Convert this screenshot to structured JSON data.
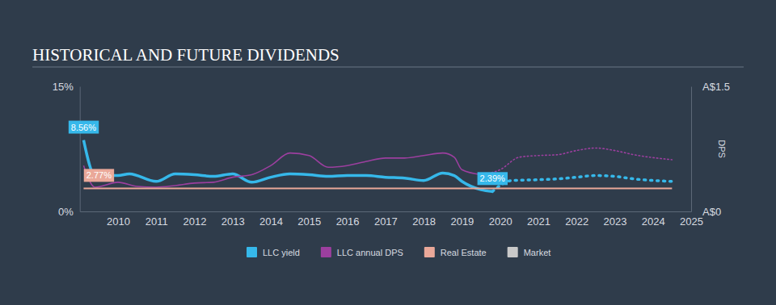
{
  "chart_data": {
    "type": "line",
    "title": "HISTORICAL AND FUTURE DIVIDENDS",
    "y2_label": "DPS",
    "xlim": [
      2009,
      2025
    ],
    "xticks": [
      2010,
      2011,
      2012,
      2013,
      2014,
      2015,
      2016,
      2017,
      2018,
      2019,
      2020,
      2021,
      2022,
      2023,
      2024,
      2025
    ],
    "ylim": [
      0,
      15
    ],
    "yticks": [
      {
        "value": 0,
        "label": "0%"
      },
      {
        "value": 15,
        "label": "15%"
      }
    ],
    "y2lim": [
      0,
      1.5
    ],
    "y2ticks": [
      {
        "value": 0,
        "label": "A$0"
      },
      {
        "value": 1.5,
        "label": "A$1.5"
      }
    ],
    "grid": false,
    "legend": "bottom",
    "series": [
      {
        "name": "LLC yield",
        "color": "#36b8ea",
        "line_style": "solid",
        "x": [
          2009.1,
          2009.4,
          2010,
          2010.3,
          2011,
          2011.5,
          2012,
          2012.5,
          2013,
          2013.5,
          2014,
          2014.5,
          2015,
          2015.5,
          2016,
          2016.5,
          2017,
          2017.5,
          2018,
          2018.5,
          2018.8,
          2019,
          2019.5,
          2019.8
        ],
        "values": [
          8.56,
          4.3,
          4.3,
          4.5,
          3.6,
          4.5,
          4.4,
          4.2,
          4.5,
          3.5,
          4.1,
          4.5,
          4.4,
          4.2,
          4.3,
          4.3,
          4.1,
          4.0,
          3.7,
          4.6,
          4.3,
          3.6,
          2.6,
          2.39
        ]
      },
      {
        "name": "LLC yield",
        "color": "#36b8ea",
        "line_style": "dotted",
        "x": [
          2019.8,
          2020.3,
          2021,
          2021.5,
          2022,
          2022.5,
          2023,
          2023.5,
          2024.5
        ],
        "values": [
          2.39,
          3.7,
          3.8,
          3.9,
          4.1,
          4.3,
          4.2,
          3.9,
          3.6
        ]
      },
      {
        "name": "LLC annual DPS",
        "color": "#9c3f9f",
        "line_style": "solid",
        "axis": "y2",
        "x": [
          2009.1,
          2009.4,
          2010,
          2010.5,
          2011,
          2011.5,
          2012,
          2012.5,
          2013,
          2013.5,
          2014,
          2014.5,
          2015,
          2015.5,
          2016,
          2016.5,
          2017,
          2017.5,
          2018,
          2018.5,
          2018.8,
          2019,
          2019.5
        ],
        "values": [
          0.55,
          0.29,
          0.35,
          0.3,
          0.29,
          0.31,
          0.34,
          0.35,
          0.41,
          0.44,
          0.55,
          0.7,
          0.67,
          0.53,
          0.55,
          0.6,
          0.64,
          0.64,
          0.67,
          0.7,
          0.65,
          0.5,
          0.44
        ]
      },
      {
        "name": "LLC annual DPS",
        "color": "#9c3f9f",
        "line_style": "dotted",
        "axis": "y2",
        "x": [
          2019.5,
          2020,
          2020.5,
          2021,
          2021.5,
          2022,
          2022.5,
          2023,
          2023.5,
          2024.5
        ],
        "values": [
          0.44,
          0.5,
          0.65,
          0.67,
          0.68,
          0.73,
          0.76,
          0.73,
          0.68,
          0.62
        ]
      },
      {
        "name": "Real Estate",
        "color": "#eaa899",
        "line_style": "solid",
        "x": [
          2009.1,
          2024.5
        ],
        "values": [
          2.77,
          2.77
        ]
      },
      {
        "name": "Market",
        "color": "#c9c9c9",
        "line_style": "solid",
        "x": [],
        "values": []
      }
    ],
    "annotations": [
      {
        "text": "8.56%",
        "x": 2009.1,
        "y": 8.56,
        "color": "#36b8ea"
      },
      {
        "text": "2.77%",
        "x": 2009.5,
        "y": 2.77,
        "color": "#eaa899"
      },
      {
        "text": "2.39%",
        "x": 2019.8,
        "y": 2.39,
        "color": "#36b8ea"
      }
    ]
  }
}
